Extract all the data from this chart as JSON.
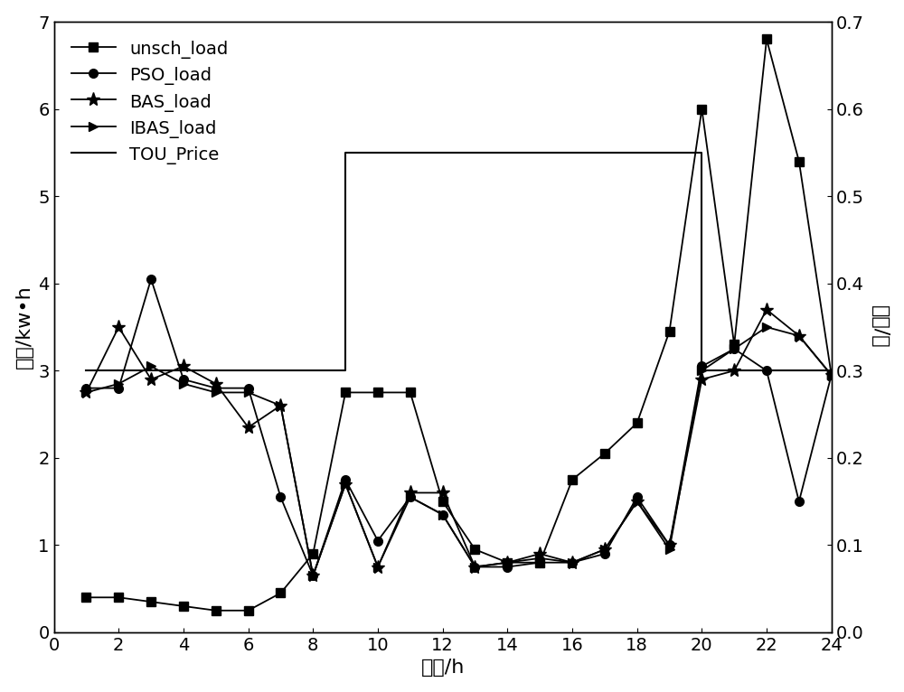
{
  "hours": [
    1,
    2,
    3,
    4,
    5,
    6,
    7,
    8,
    9,
    10,
    11,
    12,
    13,
    14,
    15,
    16,
    17,
    18,
    19,
    20,
    21,
    22,
    23,
    24
  ],
  "unsch_load": [
    0.4,
    0.4,
    0.35,
    0.3,
    0.25,
    0.25,
    0.45,
    0.9,
    2.75,
    2.75,
    2.75,
    1.5,
    0.95,
    0.8,
    0.8,
    1.75,
    2.05,
    2.4,
    3.45,
    6.0,
    3.3,
    6.8,
    5.4,
    2.95
  ],
  "PSO_load": [
    2.8,
    2.8,
    4.05,
    2.9,
    2.8,
    2.8,
    1.55,
    0.65,
    1.75,
    1.05,
    1.55,
    1.35,
    0.75,
    0.75,
    0.8,
    0.8,
    0.9,
    1.55,
    1.0,
    3.05,
    3.25,
    3.0,
    1.5,
    2.95
  ],
  "BAS_load": [
    2.75,
    3.5,
    2.9,
    3.05,
    2.85,
    2.35,
    2.6,
    0.65,
    1.7,
    0.75,
    1.6,
    1.6,
    0.75,
    0.8,
    0.9,
    0.8,
    0.95,
    1.5,
    1.0,
    2.9,
    3.0,
    3.7,
    3.4,
    2.95
  ],
  "IBAS_load": [
    2.75,
    2.85,
    3.05,
    2.85,
    2.75,
    2.75,
    2.6,
    0.65,
    1.7,
    0.75,
    1.55,
    1.35,
    0.75,
    0.8,
    0.85,
    0.8,
    0.95,
    1.5,
    0.95,
    3.0,
    3.25,
    3.5,
    3.4,
    2.95
  ],
  "TOU_price_x": [
    1,
    9,
    9,
    20,
    20,
    24
  ],
  "TOU_price_y": [
    3.0,
    3.0,
    5.5,
    5.5,
    3.0,
    3.0
  ],
  "xlabel": "时刻/h",
  "ylabel_left": "负荷/kw•h",
  "ylabel_right": "电价/元",
  "xlim": [
    0,
    24
  ],
  "ylim_left": [
    0,
    7
  ],
  "ylim_right": [
    0.0,
    0.7
  ],
  "xticks": [
    0,
    2,
    4,
    6,
    8,
    10,
    12,
    14,
    16,
    18,
    20,
    22,
    24
  ],
  "yticks_left": [
    0,
    1,
    2,
    3,
    4,
    5,
    6,
    7
  ],
  "yticks_right": [
    0.0,
    0.1,
    0.2,
    0.3,
    0.4,
    0.5,
    0.6,
    0.7
  ],
  "legend_labels": [
    "unsch_load",
    "PSO_load",
    "BAS_load",
    "IBAS_load",
    "TOU_Price"
  ],
  "line_color": "black",
  "font_size_ticks": 14,
  "font_size_labels": 16,
  "font_size_legend": 14,
  "figsize": [
    10.0,
    7.66
  ],
  "dpi": 100
}
